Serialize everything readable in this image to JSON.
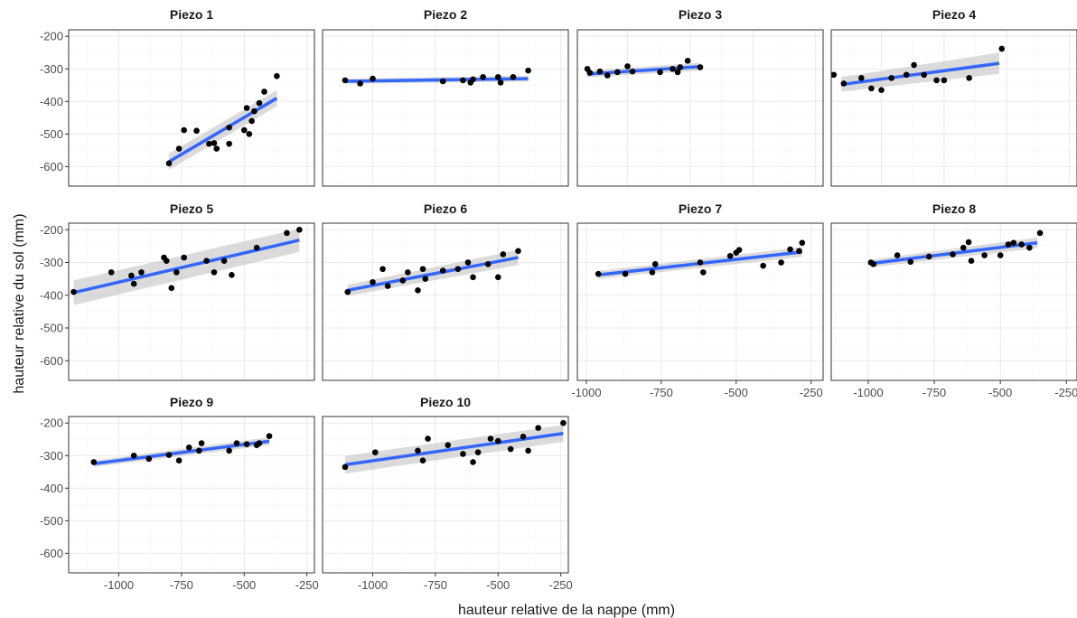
{
  "chart_data": {
    "type": "scatter",
    "xlabel": "hauteur relative de la nappe (mm)",
    "ylabel": "hauteur relative du sol (mm)",
    "xlim": [
      -1200,
      -200
    ],
    "ylim": [
      -660,
      -180
    ],
    "x_ticks": [
      -1000,
      -750,
      -500,
      -250
    ],
    "x_tick_labels": [
      "-1000",
      "-750",
      "-500",
      "-250"
    ],
    "y_ticks": [
      -200,
      -300,
      -400,
      -500,
      -600
    ],
    "y_tick_labels": [
      "-200",
      "-300",
      "-400",
      "-500",
      "-600"
    ],
    "grid": true,
    "facets": "wrap 4 columns, free_x",
    "colors": {
      "point": "#000000",
      "fit_line": "#3366ff",
      "confidence_band": "#bebebe",
      "panel_border": "#333333",
      "grid": "#ebebeb"
    },
    "panels": [
      {
        "title": "Piezo 1",
        "xlim": [
          -1200,
          -220
        ],
        "points": [
          [
            -800,
            -590
          ],
          [
            -760,
            -545
          ],
          [
            -740,
            -488
          ],
          [
            -690,
            -490
          ],
          [
            -640,
            -530
          ],
          [
            -620,
            -528
          ],
          [
            -610,
            -545
          ],
          [
            -560,
            -480
          ],
          [
            -560,
            -530
          ],
          [
            -500,
            -488
          ],
          [
            -490,
            -420
          ],
          [
            -480,
            -500
          ],
          [
            -470,
            -460
          ],
          [
            -460,
            -430
          ],
          [
            -440,
            -405
          ],
          [
            -420,
            -370
          ],
          [
            -370,
            -322
          ]
        ],
        "fit": {
          "x": [
            -800,
            -370
          ],
          "y": [
            -585,
            -390
          ]
        },
        "band": {
          "lower": [
            -610,
            -415
          ],
          "upper": [
            -560,
            -365
          ]
        }
      },
      {
        "title": "Piezo 2",
        "xlim": [
          -1200,
          -220
        ],
        "points": [
          [
            -1110,
            -335
          ],
          [
            -1050,
            -345
          ],
          [
            -1000,
            -330
          ],
          [
            -720,
            -338
          ],
          [
            -640,
            -335
          ],
          [
            -610,
            -342
          ],
          [
            -600,
            -332
          ],
          [
            -560,
            -325
          ],
          [
            -500,
            -325
          ],
          [
            -490,
            -342
          ],
          [
            -440,
            -325
          ],
          [
            -380,
            -305
          ]
        ],
        "fit": {
          "x": [
            -1110,
            -380
          ],
          "y": [
            -338,
            -330
          ]
        },
        "band": {
          "lower": [
            -346,
            -339
          ],
          "upper": [
            -330,
            -321
          ]
        }
      },
      {
        "title": "Piezo 3",
        "xlim": [
          -1200,
          -220
        ],
        "points": [
          [
            -1160,
            -300
          ],
          [
            -1150,
            -312
          ],
          [
            -1110,
            -308
          ],
          [
            -1080,
            -320
          ],
          [
            -1040,
            -310
          ],
          [
            -1000,
            -292
          ],
          [
            -980,
            -308
          ],
          [
            -870,
            -310
          ],
          [
            -820,
            -300
          ],
          [
            -800,
            -310
          ],
          [
            -790,
            -295
          ],
          [
            -760,
            -275
          ],
          [
            -710,
            -295
          ]
        ],
        "fit": {
          "x": [
            -1160,
            -710
          ],
          "y": [
            -316,
            -293
          ]
        },
        "band": {
          "lower": [
            -326,
            -305
          ],
          "upper": [
            -306,
            -281
          ]
        }
      },
      {
        "title": "Piezo 4",
        "xlim": [
          -1200,
          -220
        ],
        "points": [
          [
            -1190,
            -318
          ],
          [
            -1150,
            -345
          ],
          [
            -1080,
            -328
          ],
          [
            -1040,
            -360
          ],
          [
            -1000,
            -365
          ],
          [
            -960,
            -328
          ],
          [
            -900,
            -318
          ],
          [
            -870,
            -288
          ],
          [
            -830,
            -318
          ],
          [
            -780,
            -335
          ],
          [
            -750,
            -335
          ],
          [
            -650,
            -328
          ],
          [
            -520,
            -238
          ]
        ],
        "fit": {
          "x": [
            -1160,
            -530
          ],
          "y": [
            -348,
            -283
          ]
        },
        "band": {
          "lower": [
            -370,
            -315
          ],
          "upper": [
            -325,
            -250
          ]
        }
      },
      {
        "title": "Piezo 5",
        "xlim": [
          -1200,
          -220
        ],
        "points": [
          [
            -1180,
            -390
          ],
          [
            -1030,
            -330
          ],
          [
            -950,
            -340
          ],
          [
            -940,
            -365
          ],
          [
            -910,
            -330
          ],
          [
            -820,
            -285
          ],
          [
            -810,
            -295
          ],
          [
            -790,
            -378
          ],
          [
            -770,
            -330
          ],
          [
            -740,
            -285
          ],
          [
            -650,
            -295
          ],
          [
            -620,
            -330
          ],
          [
            -580,
            -295
          ],
          [
            -550,
            -338
          ],
          [
            -450,
            -255
          ],
          [
            -330,
            -210
          ],
          [
            -280,
            -200
          ]
        ],
        "fit": {
          "x": [
            -1180,
            -280
          ],
          "y": [
            -392,
            -232
          ]
        },
        "band": {
          "lower": [
            -430,
            -268
          ],
          "upper": [
            -355,
            -197
          ]
        }
      },
      {
        "title": "Piezo 6",
        "xlim": [
          -1200,
          -220
        ],
        "points": [
          [
            -1100,
            -390
          ],
          [
            -1000,
            -360
          ],
          [
            -960,
            -320
          ],
          [
            -940,
            -372
          ],
          [
            -880,
            -355
          ],
          [
            -860,
            -330
          ],
          [
            -820,
            -385
          ],
          [
            -800,
            -320
          ],
          [
            -790,
            -350
          ],
          [
            -720,
            -325
          ],
          [
            -660,
            -320
          ],
          [
            -620,
            -300
          ],
          [
            -600,
            -345
          ],
          [
            -540,
            -305
          ],
          [
            -500,
            -345
          ],
          [
            -480,
            -275
          ],
          [
            -420,
            -265
          ]
        ],
        "fit": {
          "x": [
            -1100,
            -420
          ],
          "y": [
            -385,
            -285
          ]
        },
        "band": {
          "lower": [
            -402,
            -308
          ],
          "upper": [
            -368,
            -262
          ]
        }
      },
      {
        "title": "Piezo 7",
        "xlim": [
          -1030,
          -210
        ],
        "points": [
          [
            -960,
            -335
          ],
          [
            -870,
            -335
          ],
          [
            -780,
            -330
          ],
          [
            -770,
            -305
          ],
          [
            -620,
            -300
          ],
          [
            -610,
            -330
          ],
          [
            -520,
            -280
          ],
          [
            -500,
            -270
          ],
          [
            -490,
            -262
          ],
          [
            -410,
            -310
          ],
          [
            -350,
            -300
          ],
          [
            -320,
            -260
          ],
          [
            -290,
            -265
          ],
          [
            -280,
            -240
          ]
        ],
        "fit": {
          "x": [
            -960,
            -280
          ],
          "y": [
            -338,
            -268
          ]
        },
        "band": {
          "lower": [
            -350,
            -283
          ],
          "upper": [
            -326,
            -253
          ]
        }
      },
      {
        "title": "Piezo 8",
        "xlim": [
          -1140,
          -210
        ],
        "points": [
          [
            -990,
            -300
          ],
          [
            -980,
            -305
          ],
          [
            -890,
            -278
          ],
          [
            -840,
            -298
          ],
          [
            -770,
            -282
          ],
          [
            -680,
            -275
          ],
          [
            -640,
            -255
          ],
          [
            -620,
            -238
          ],
          [
            -610,
            -295
          ],
          [
            -560,
            -278
          ],
          [
            -500,
            -278
          ],
          [
            -470,
            -245
          ],
          [
            -450,
            -240
          ],
          [
            -420,
            -245
          ],
          [
            -390,
            -255
          ],
          [
            -350,
            -210
          ]
        ],
        "fit": {
          "x": [
            -990,
            -360
          ],
          "y": [
            -303,
            -240
          ]
        },
        "band": {
          "lower": [
            -315,
            -256
          ],
          "upper": [
            -291,
            -224
          ]
        }
      },
      {
        "title": "Piezo 9",
        "xlim": [
          -1200,
          -220
        ],
        "points": [
          [
            -1100,
            -320
          ],
          [
            -940,
            -300
          ],
          [
            -880,
            -310
          ],
          [
            -800,
            -298
          ],
          [
            -760,
            -315
          ],
          [
            -720,
            -275
          ],
          [
            -680,
            -285
          ],
          [
            -670,
            -262
          ],
          [
            -560,
            -285
          ],
          [
            -530,
            -262
          ],
          [
            -490,
            -265
          ],
          [
            -450,
            -268
          ],
          [
            -440,
            -262
          ],
          [
            -400,
            -240
          ]
        ],
        "fit": {
          "x": [
            -1100,
            -400
          ],
          "y": [
            -325,
            -256
          ]
        },
        "band": {
          "lower": [
            -335,
            -268
          ],
          "upper": [
            -315,
            -244
          ]
        }
      },
      {
        "title": "Piezo 10",
        "xlim": [
          -1200,
          -220
        ],
        "points": [
          [
            -1110,
            -335
          ],
          [
            -990,
            -290
          ],
          [
            -820,
            -285
          ],
          [
            -800,
            -315
          ],
          [
            -780,
            -248
          ],
          [
            -700,
            -268
          ],
          [
            -640,
            -295
          ],
          [
            -600,
            -320
          ],
          [
            -580,
            -290
          ],
          [
            -530,
            -248
          ],
          [
            -500,
            -255
          ],
          [
            -450,
            -280
          ],
          [
            -400,
            -242
          ],
          [
            -380,
            -285
          ],
          [
            -340,
            -215
          ],
          [
            -240,
            -200
          ]
        ],
        "fit": {
          "x": [
            -1110,
            -240
          ],
          "y": [
            -328,
            -232
          ]
        },
        "band": {
          "lower": [
            -355,
            -258
          ],
          "upper": [
            -301,
            -206
          ]
        }
      }
    ]
  }
}
